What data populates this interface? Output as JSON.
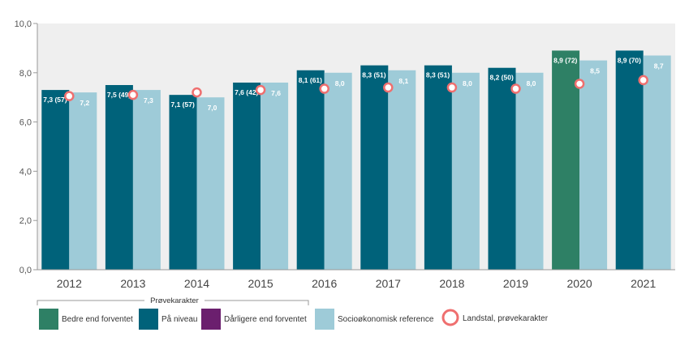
{
  "chart_data": {
    "type": "bar",
    "categories": [
      "2012",
      "2013",
      "2014",
      "2015",
      "2016",
      "2017",
      "2018",
      "2019",
      "2020",
      "2021"
    ],
    "series": [
      {
        "name": "Prøvekarakter",
        "values": [
          7.3,
          7.5,
          7.1,
          7.6,
          8.1,
          8.3,
          8.3,
          8.2,
          8.9,
          8.9
        ],
        "labels": [
          "7,3 (57)",
          "7,5 (49)",
          "7,1 (57)",
          "7,6 (42)",
          "8,1 (61)",
          "8,3 (51)",
          "8,3 (51)",
          "8,2 (50)",
          "8,9 (72)",
          "8,9 (70)"
        ],
        "status": [
          "paa_niveau",
          "paa_niveau",
          "paa_niveau",
          "paa_niveau",
          "paa_niveau",
          "paa_niveau",
          "paa_niveau",
          "paa_niveau",
          "bedre",
          "paa_niveau"
        ]
      },
      {
        "name": "Socioøkonomisk reference",
        "values": [
          7.2,
          7.3,
          7.0,
          7.6,
          8.0,
          8.1,
          8.0,
          8.0,
          8.5,
          8.7
        ],
        "labels": [
          "7,2",
          "7,3",
          "7,0",
          "7,6",
          "8,0",
          "8,1",
          "8,0",
          "8,0",
          "8,5",
          "8,7"
        ]
      },
      {
        "name": "Landstal, prøvekarakter",
        "values": [
          7.05,
          7.1,
          7.2,
          7.3,
          7.35,
          7.4,
          7.4,
          7.35,
          7.55,
          7.7
        ]
      }
    ],
    "ylim": [
      0,
      10
    ],
    "yticks": [
      0,
      2,
      4,
      6,
      8,
      10
    ],
    "ytick_labels": [
      "0,0",
      "2,0",
      "4,0",
      "6,0",
      "8,0",
      "10,0"
    ],
    "grid": false,
    "legend_position": "bottom-left",
    "colors": {
      "bedre": "#2e8065",
      "paa_niveau": "#00627a",
      "daarligere": "#6b1f6e",
      "reference": "#9ecbd8",
      "landstal_ring": "#ef6f6f",
      "plot_background": "#efefef"
    }
  },
  "legend": {
    "group_title": "Prøvekarakter",
    "items": [
      {
        "label": "Bedre end forventet",
        "key": "bedre"
      },
      {
        "label": "På niveau",
        "key": "paa_niveau"
      },
      {
        "label": "Dårligere end forventet",
        "key": "daarligere"
      },
      {
        "label": "Socioøkonomisk reference",
        "key": "reference"
      },
      {
        "label": "Landstal, prøvekarakter",
        "key": "landstal"
      }
    ]
  }
}
